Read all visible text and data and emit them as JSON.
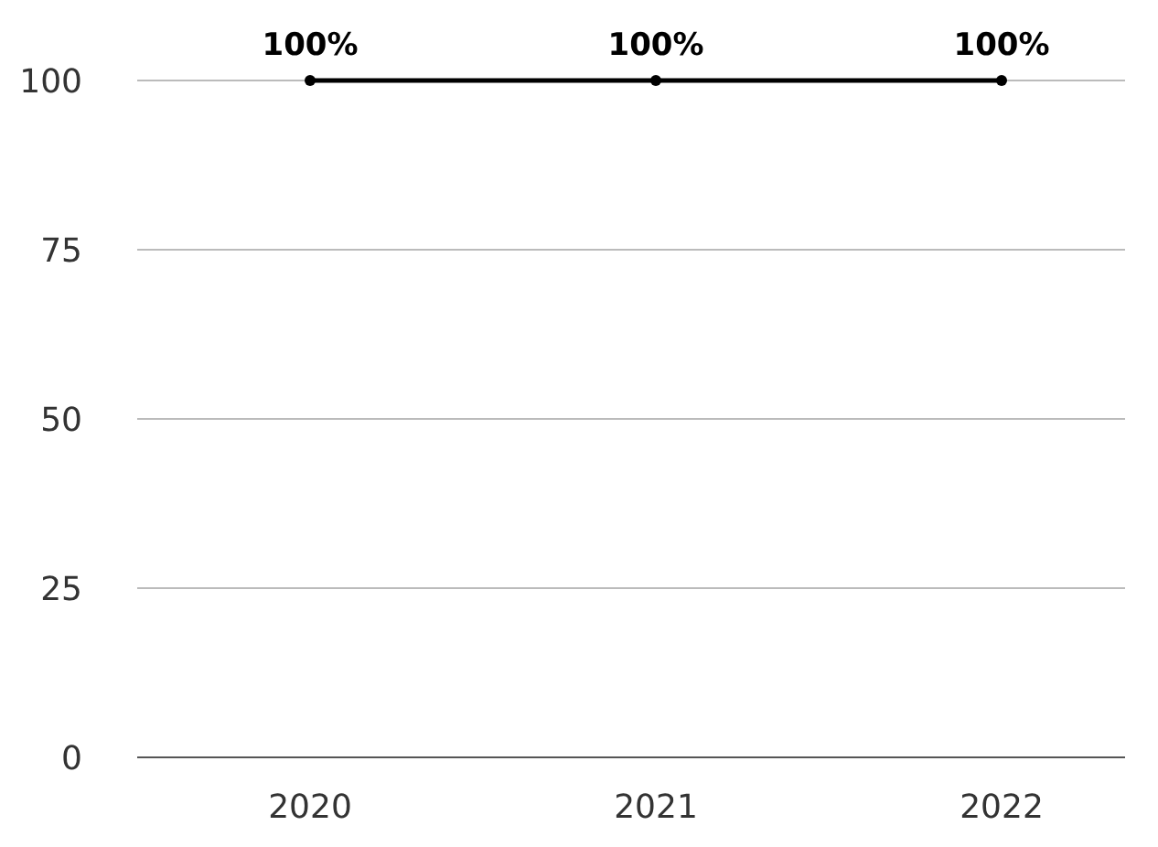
{
  "chart_data": {
    "type": "line",
    "categories": [
      "2020",
      "2021",
      "2022"
    ],
    "series": [
      {
        "color": "#000000",
        "values": [
          100,
          100,
          100
        ],
        "value_labels": [
          "100%",
          "100%",
          "100%"
        ]
      }
    ],
    "ylim": [
      0,
      100
    ],
    "yticks": [
      0,
      25,
      50,
      75,
      100
    ],
    "grid": "y",
    "marker": "circle"
  }
}
